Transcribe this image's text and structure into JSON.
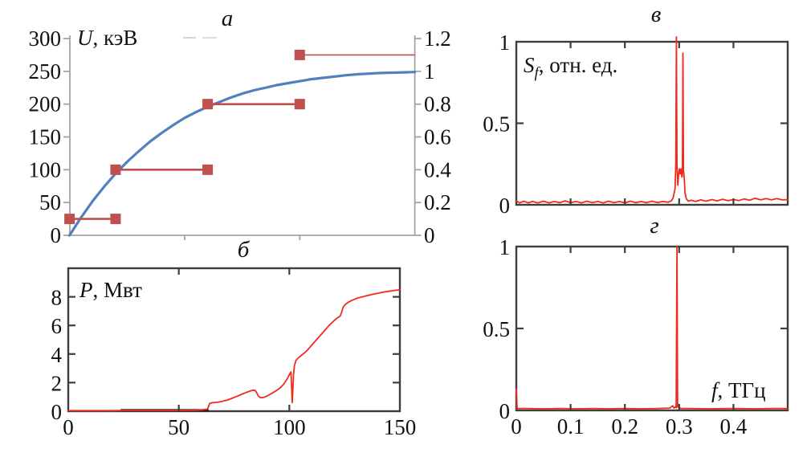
{
  "colors": {
    "blue_curve": "#4f81bd",
    "red_bars": "#c0504d",
    "red_signal": "#ef2b1e",
    "black_series": "#1a1a1a",
    "frame": "#3d3d3d",
    "gray_axis": "#a3a3a3",
    "text": "#111111"
  },
  "chart_data": [
    {
      "id": "a",
      "type": "line",
      "title": "а",
      "label_main": "U",
      "label_rest": ", кэВ",
      "xlim": [
        0,
        150
      ],
      "left_axis": {
        "values": [
          0,
          50,
          100,
          150,
          200,
          250,
          300
        ],
        "labels": [
          "0",
          "50",
          "100",
          "150",
          "200",
          "250",
          "300"
        ]
      },
      "right_axis": {
        "values": [
          0,
          0.2,
          0.4,
          0.6,
          0.8,
          1.0,
          1.2
        ],
        "labels": [
          "0",
          "0.2",
          "0.4",
          "0.6",
          "0.8",
          "1",
          "1.2"
        ]
      },
      "x_ticks": {
        "values": [
          50,
          100
        ],
        "labels": null
      },
      "series": [
        {
          "name": "energy-curve",
          "color_key": "blue_curve",
          "points": [
            [
              0,
              0
            ],
            [
              5,
              27
            ],
            [
              10,
              52
            ],
            [
              15,
              74
            ],
            [
              20,
              94
            ],
            [
              25,
              112
            ],
            [
              30,
              128
            ],
            [
              35,
              143
            ],
            [
              40,
              156
            ],
            [
              45,
              168
            ],
            [
              50,
              179
            ],
            [
              55,
              188
            ],
            [
              60,
              196
            ],
            [
              65,
              203
            ],
            [
              70,
              210
            ],
            [
              75,
              216
            ],
            [
              80,
              221
            ],
            [
              85,
              225
            ],
            [
              90,
              229
            ],
            [
              95,
              232
            ],
            [
              100,
              235
            ],
            [
              105,
              238
            ],
            [
              110,
              240
            ],
            [
              115,
              242
            ],
            [
              120,
              244
            ],
            [
              125,
              245.5
            ],
            [
              130,
              246.5
            ],
            [
              135,
              247.5
            ],
            [
              140,
              248
            ],
            [
              145,
              248.5
            ],
            [
              150,
              249
            ]
          ]
        }
      ],
      "bars": [
        {
          "x": [
            0,
            20
          ],
          "u_kev": 25,
          "rel": 0.1,
          "markers": "both"
        },
        {
          "x": [
            20,
            60
          ],
          "u_kev": 100,
          "rel": 0.4,
          "markers": "both"
        },
        {
          "x": [
            60,
            100
          ],
          "u_kev": 200,
          "rel": 0.8,
          "markers": "both"
        },
        {
          "x": [
            100,
            150
          ],
          "u_kev": 275,
          "rel": 1.1,
          "markers": "left"
        }
      ]
    },
    {
      "id": "b",
      "type": "line",
      "title": "б",
      "label_main": "P",
      "label_rest": ", Мвт",
      "xlim": [
        0,
        150
      ],
      "ylim": [
        0,
        10
      ],
      "x_ticks": {
        "values": [
          0,
          50,
          100,
          150
        ],
        "labels": [
          "0",
          "50",
          "100",
          "150"
        ],
        "marks": [
          50,
          100
        ]
      },
      "y_ticks": {
        "values": [
          0,
          2,
          4,
          6,
          8
        ],
        "labels": [
          "0",
          "2",
          "4",
          "6",
          "8"
        ],
        "marks": [
          2,
          4,
          6,
          8
        ]
      },
      "series": [
        {
          "name": "zero-level-segment",
          "color_key": "black_series",
          "points": [
            [
              24,
              0.06
            ],
            [
              63,
              0.06
            ]
          ]
        },
        {
          "name": "power-curve",
          "color_key": "red_signal",
          "points": [
            [
              0,
              0.04
            ],
            [
              8,
              0.04
            ],
            [
              16,
              0.04
            ],
            [
              23,
              0.05
            ],
            [
              30,
              0.05
            ],
            [
              38,
              0.05
            ],
            [
              46,
              0.05
            ],
            [
              54,
              0.06
            ],
            [
              58,
              0.07
            ],
            [
              61,
              0.1
            ],
            [
              63,
              0.15
            ],
            [
              64,
              0.55
            ],
            [
              65.5,
              0.6
            ],
            [
              67,
              0.62
            ],
            [
              68.5,
              0.65
            ],
            [
              70,
              0.7
            ],
            [
              72,
              0.78
            ],
            [
              74,
              0.9
            ],
            [
              76,
              1.02
            ],
            [
              78,
              1.15
            ],
            [
              80,
              1.28
            ],
            [
              82,
              1.4
            ],
            [
              83.5,
              1.47
            ],
            [
              84.5,
              1.45
            ],
            [
              85.2,
              1.3
            ],
            [
              86,
              1.05
            ],
            [
              87,
              0.95
            ],
            [
              88,
              0.95
            ],
            [
              89,
              1.0
            ],
            [
              90,
              1.07
            ],
            [
              91.5,
              1.2
            ],
            [
              93,
              1.33
            ],
            [
              94.5,
              1.48
            ],
            [
              96,
              1.65
            ],
            [
              97.5,
              1.9
            ],
            [
              99,
              2.25
            ],
            [
              100,
              2.55
            ],
            [
              100.7,
              2.75
            ],
            [
              101,
              1.8
            ],
            [
              101.3,
              0.6
            ],
            [
              101.6,
              1.5
            ],
            [
              101.9,
              2.6
            ],
            [
              102.3,
              3.2
            ],
            [
              103,
              3.55
            ],
            [
              104,
              3.72
            ],
            [
              105,
              3.85
            ],
            [
              106,
              3.98
            ],
            [
              107,
              4.1
            ],
            [
              108,
              4.25
            ],
            [
              109,
              4.42
            ],
            [
              110,
              4.6
            ],
            [
              112,
              4.95
            ],
            [
              114,
              5.3
            ],
            [
              116,
              5.65
            ],
            [
              118,
              6.0
            ],
            [
              120,
              6.3
            ],
            [
              121.5,
              6.5
            ],
            [
              123,
              6.65
            ],
            [
              123.7,
              6.95
            ],
            [
              124.3,
              7.25
            ],
            [
              125,
              7.42
            ],
            [
              126,
              7.55
            ],
            [
              127,
              7.65
            ],
            [
              128,
              7.73
            ],
            [
              129.5,
              7.83
            ],
            [
              131,
              7.92
            ],
            [
              133,
              8.0
            ],
            [
              135,
              8.08
            ],
            [
              137,
              8.15
            ],
            [
              139,
              8.22
            ],
            [
              141,
              8.28
            ],
            [
              143,
              8.34
            ],
            [
              145,
              8.39
            ],
            [
              147,
              8.43
            ],
            [
              149,
              8.47
            ],
            [
              150,
              8.5
            ]
          ]
        }
      ]
    },
    {
      "id": "v",
      "type": "line",
      "title": "в",
      "label_main": "S",
      "label_sub": "f",
      "label_rest": ", отн. ед.",
      "xlim": [
        0,
        0.5
      ],
      "ylim": [
        0,
        1
      ],
      "x_ticks": {
        "values": [
          0.1,
          0.2,
          0.3,
          0.4
        ],
        "labels": null
      },
      "y_ticks": {
        "values": [
          0,
          0.5,
          1
        ],
        "labels": [
          "0",
          "0.5",
          "1"
        ],
        "marks": [
          0.5
        ]
      },
      "peaks": [
        {
          "x": 0.295,
          "height": 1.0
        },
        {
          "x": 0.307,
          "height": 0.93
        }
      ],
      "series": [
        {
          "name": "spectrum",
          "color_key": "red_signal",
          "points": [
            [
              0,
              0.025
            ],
            [
              0.006,
              0.012
            ],
            [
              0.014,
              0.022
            ],
            [
              0.022,
              0.012
            ],
            [
              0.03,
              0.02
            ],
            [
              0.04,
              0.012
            ],
            [
              0.05,
              0.022
            ],
            [
              0.06,
              0.012
            ],
            [
              0.07,
              0.02
            ],
            [
              0.08,
              0.013
            ],
            [
              0.09,
              0.024
            ],
            [
              0.1,
              0.013
            ],
            [
              0.11,
              0.02
            ],
            [
              0.12,
              0.012
            ],
            [
              0.13,
              0.022
            ],
            [
              0.14,
              0.013
            ],
            [
              0.15,
              0.02
            ],
            [
              0.16,
              0.012
            ],
            [
              0.17,
              0.022
            ],
            [
              0.18,
              0.013
            ],
            [
              0.19,
              0.02
            ],
            [
              0.2,
              0.012
            ],
            [
              0.21,
              0.022
            ],
            [
              0.22,
              0.013
            ],
            [
              0.23,
              0.02
            ],
            [
              0.24,
              0.013
            ],
            [
              0.25,
              0.022
            ],
            [
              0.26,
              0.014
            ],
            [
              0.27,
              0.02
            ],
            [
              0.28,
              0.016
            ],
            [
              0.286,
              0.025
            ],
            [
              0.289,
              0.045
            ],
            [
              0.2925,
              0.1
            ],
            [
              0.294,
              0.26
            ],
            [
              0.295,
              1.03
            ],
            [
              0.296,
              0.25
            ],
            [
              0.2975,
              0.12
            ],
            [
              0.299,
              0.18
            ],
            [
              0.3005,
              0.22
            ],
            [
              0.302,
              0.19
            ],
            [
              0.3035,
              0.22
            ],
            [
              0.305,
              0.17
            ],
            [
              0.306,
              0.2
            ],
            [
              0.307,
              0.93
            ],
            [
              0.308,
              0.21
            ],
            [
              0.3095,
              0.16
            ],
            [
              0.311,
              0.07
            ],
            [
              0.3135,
              0.035
            ],
            [
              0.317,
              0.022
            ],
            [
              0.322,
              0.028
            ],
            [
              0.33,
              0.02
            ],
            [
              0.34,
              0.03
            ],
            [
              0.35,
              0.022
            ],
            [
              0.36,
              0.032
            ],
            [
              0.37,
              0.024
            ],
            [
              0.38,
              0.034
            ],
            [
              0.39,
              0.025
            ],
            [
              0.4,
              0.032
            ],
            [
              0.41,
              0.026
            ],
            [
              0.42,
              0.036
            ],
            [
              0.43,
              0.028
            ],
            [
              0.44,
              0.04
            ],
            [
              0.45,
              0.03
            ],
            [
              0.46,
              0.038
            ],
            [
              0.47,
              0.03
            ],
            [
              0.48,
              0.038
            ],
            [
              0.49,
              0.03
            ],
            [
              0.5,
              0.032
            ]
          ]
        }
      ]
    },
    {
      "id": "g",
      "type": "line",
      "title": "г",
      "label_main": "f",
      "label_rest": ", ТГц",
      "xlim": [
        0,
        0.5
      ],
      "ylim": [
        0,
        1
      ],
      "x_ticks": {
        "values": [
          0,
          0.1,
          0.2,
          0.3,
          0.4
        ],
        "labels": [
          "0",
          "0.1",
          "0.2",
          "0.3",
          "0.4"
        ],
        "marks": [
          0.1,
          0.2,
          0.3,
          0.4
        ]
      },
      "y_ticks": {
        "values": [
          0,
          0.5,
          1
        ],
        "labels": [
          "0",
          "0.5",
          "1"
        ],
        "marks": [
          0.5
        ]
      },
      "peaks": [
        {
          "x": 0.296,
          "height": 1.0
        }
      ],
      "series": [
        {
          "name": "spectrum",
          "color_key": "red_signal",
          "points": [
            [
              0,
              0.13
            ],
            [
              0.0015,
              0.012
            ],
            [
              0.02,
              0.012
            ],
            [
              0.05,
              0.01
            ],
            [
              0.08,
              0.012
            ],
            [
              0.11,
              0.01
            ],
            [
              0.14,
              0.012
            ],
            [
              0.17,
              0.01
            ],
            [
              0.2,
              0.012
            ],
            [
              0.23,
              0.01
            ],
            [
              0.26,
              0.012
            ],
            [
              0.283,
              0.014
            ],
            [
              0.288,
              0.028
            ],
            [
              0.2905,
              0.014
            ],
            [
              0.293,
              0.022
            ],
            [
              0.2945,
              0.016
            ],
            [
              0.296,
              1.0
            ],
            [
              0.2972,
              0.02
            ],
            [
              0.2985,
              0.032
            ],
            [
              0.3,
              0.018
            ],
            [
              0.303,
              0.012
            ],
            [
              0.32,
              0.012
            ],
            [
              0.36,
              0.01
            ],
            [
              0.4,
              0.012
            ],
            [
              0.44,
              0.01
            ],
            [
              0.47,
              0.012
            ],
            [
              0.5,
              0.012
            ]
          ]
        }
      ]
    }
  ]
}
